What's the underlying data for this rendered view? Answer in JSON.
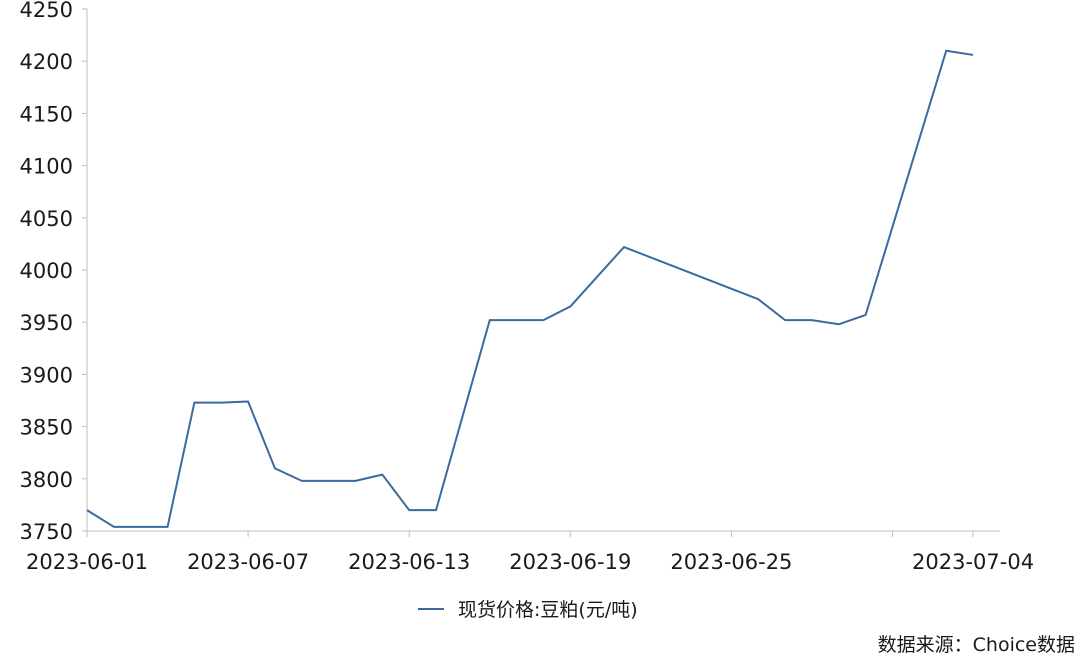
{
  "chart_data": {
    "type": "line",
    "title": "",
    "xlabel": "",
    "ylabel": "",
    "ylim": [
      3750,
      4250
    ],
    "yticks": [
      3750,
      3800,
      3850,
      3900,
      3950,
      4000,
      4050,
      4100,
      4150,
      4200,
      4250
    ],
    "xlim": [
      "2023-06-01",
      "2023-07-04"
    ],
    "xtick_labels": [
      "2023-06-01",
      "2023-06-07",
      "2023-06-13",
      "2023-06-19",
      "2023-06-25",
      "2023-07-04"
    ],
    "grid": false,
    "legend_position": "bottom",
    "series": [
      {
        "name": "现货价格:豆粕(元/吨)",
        "color": "#3a6a9e",
        "points": [
          [
            "2023-06-01",
            3770
          ],
          [
            "2023-06-02",
            3754
          ],
          [
            "2023-06-03",
            3754
          ],
          [
            "2023-06-04",
            3754
          ],
          [
            "2023-06-05",
            3873
          ],
          [
            "2023-06-06",
            3873
          ],
          [
            "2023-06-07",
            3874
          ],
          [
            "2023-06-08",
            3810
          ],
          [
            "2023-06-09",
            3798
          ],
          [
            "2023-06-10",
            3798
          ],
          [
            "2023-06-11",
            3798
          ],
          [
            "2023-06-12",
            3804
          ],
          [
            "2023-06-13",
            3770
          ],
          [
            "2023-06-14",
            3770
          ],
          [
            "2023-06-16",
            3952
          ],
          [
            "2023-06-17",
            3952
          ],
          [
            "2023-06-18",
            3952
          ],
          [
            "2023-06-19",
            3965
          ],
          [
            "2023-06-21",
            4022
          ],
          [
            "2023-06-26",
            3972
          ],
          [
            "2023-06-27",
            3952
          ],
          [
            "2023-06-28",
            3952
          ],
          [
            "2023-06-29",
            3948
          ],
          [
            "2023-06-30",
            3957
          ],
          [
            "2023-07-03",
            4210
          ],
          [
            "2023-07-04",
            4206
          ]
        ]
      }
    ]
  },
  "source": "数据来源：Choice数据"
}
